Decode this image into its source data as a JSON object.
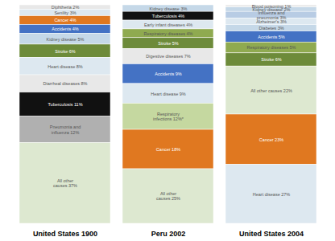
{
  "chart_data": {
    "type": "bar",
    "stacked": true,
    "data_labels": true,
    "tick_labels": "x",
    "ylim": [
      0,
      100
    ],
    "categories": [
      "United States 1900",
      "Peru 2002",
      "United States 2004"
    ],
    "stacks": [
      {
        "category": "United States 1900",
        "values": [
          2,
          3,
          4,
          4,
          5,
          6,
          8,
          8,
          11,
          12,
          37
        ],
        "value_labels": [
          "Diphtheria 2%",
          "Senility 3%",
          "Cancer 4%",
          "Accidents 4%",
          "Kidney disease 5%",
          "Stroke 6%",
          "Heart disease 8%",
          "Diarrheal diseases 8%",
          "Tuberculosis 11%",
          "Pneumonia and\ninfluenza 12%",
          "All other\ncauses 37%"
        ],
        "colors": [
          "#e8e8e8",
          "#dde8f0",
          "#e07820",
          "#4472c4",
          "#c5d8e8",
          "#6d8b3a",
          "#dde8f0",
          "#e8e8e8",
          "#111111",
          "#b0b0b0",
          "#dde8d0"
        ],
        "label_colors": [
          "#555555",
          "#555555",
          "#ffffff",
          "#ffffff",
          "#555555",
          "#ffffff",
          "#555555",
          "#555555",
          "#ffffff",
          "#555555",
          "#555555"
        ]
      },
      {
        "category": "Peru 2002",
        "values": [
          3,
          4,
          4,
          4,
          5,
          7,
          9,
          9,
          12,
          18,
          25
        ],
        "value_labels": [
          "Kidney disease 3%",
          "Tuberculosis 4%",
          "Early infant diseases 4%",
          "Respiratory diseases 4%",
          "Stroke 5%",
          "Digestive diseases 7%",
          "Accidents 9%",
          "Heart disease 9%",
          "Respiratory\ninfections 12%*",
          "Cancer 18%",
          "All other\ncauses 25%"
        ],
        "colors": [
          "#c5d8e8",
          "#111111",
          "#dde8f0",
          "#8faa50",
          "#6d8b3a",
          "#e8e8e8",
          "#4472c4",
          "#dde8f0",
          "#c5d8a0",
          "#e07820",
          "#dde8d0"
        ],
        "label_colors": [
          "#555555",
          "#ffffff",
          "#555555",
          "#555555",
          "#ffffff",
          "#555555",
          "#ffffff",
          "#555555",
          "#555555",
          "#ffffff",
          "#555555"
        ]
      },
      {
        "category": "United States 2004",
        "values": [
          1,
          2,
          3,
          3,
          3,
          5,
          5,
          6,
          22,
          23,
          27
        ],
        "value_labels": [
          "Blood poisoning 1%",
          "Kidney disease 2%",
          "Influenza and\npneumonia 3%",
          "Alzheimer's 3%",
          "Diabetes 3%",
          "Accidents 5%",
          "Respiratory diseases 5%",
          "Stroke 6%",
          "All other causes 22%",
          "Cancer 23%",
          "Heart disease 27%"
        ],
        "colors": [
          "#e8e8e8",
          "#c5d8e8",
          "#b8cce4",
          "#dde8f0",
          "#c5d8e8",
          "#4472c4",
          "#8faa50",
          "#6d8b3a",
          "#dde8d0",
          "#e07820",
          "#dde8f0"
        ],
        "label_colors": [
          "#555555",
          "#555555",
          "#555555",
          "#555555",
          "#555555",
          "#ffffff",
          "#555555",
          "#ffffff",
          "#555555",
          "#ffffff",
          "#555555"
        ]
      }
    ]
  }
}
